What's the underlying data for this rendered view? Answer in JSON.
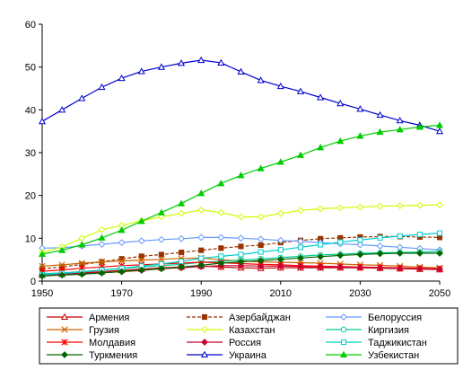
{
  "chart_data": {
    "type": "line",
    "x": [
      1950,
      1955,
      1960,
      1965,
      1970,
      1975,
      1980,
      1985,
      1990,
      1995,
      2000,
      2005,
      2010,
      2015,
      2020,
      2025,
      2030,
      2035,
      2040,
      2045,
      2050
    ],
    "xticks": [
      1950,
      1970,
      1990,
      2010,
      2030,
      2050
    ],
    "yticks": [
      0,
      10,
      20,
      30,
      40,
      50,
      60
    ],
    "xlim": [
      1950,
      2050
    ],
    "ylim": [
      0,
      60
    ],
    "grid": false,
    "legend_position": "bottom",
    "series": [
      {
        "name": "Армения",
        "color": "#c00000",
        "dash": "",
        "marker": "triangle-open",
        "values": [
          1.4,
          1.6,
          1.9,
          2.2,
          2.5,
          2.8,
          3.1,
          3.3,
          3.5,
          3.3,
          3.1,
          3.0,
          3.1,
          3.1,
          3.1,
          3.1,
          3.1,
          3.0,
          2.9,
          2.8,
          2.7
        ]
      },
      {
        "name": "Азербайджан",
        "color": "#993300",
        "dash": "4,2",
        "marker": "square-filled",
        "values": [
          2.9,
          3.3,
          3.9,
          4.5,
          5.2,
          5.8,
          6.2,
          6.7,
          7.2,
          7.7,
          8.1,
          8.4,
          9.0,
          9.5,
          9.9,
          10.1,
          10.3,
          10.4,
          10.4,
          10.3,
          10.2
        ]
      },
      {
        "name": "Белоруссия",
        "color": "#6699ff",
        "dash": "",
        "marker": "diamond-open",
        "values": [
          7.7,
          7.8,
          8.2,
          8.6,
          9.0,
          9.4,
          9.7,
          9.9,
          10.2,
          10.2,
          10.0,
          9.8,
          9.5,
          9.3,
          9.0,
          8.7,
          8.5,
          8.2,
          7.9,
          7.6,
          7.3
        ]
      },
      {
        "name": "Грузия",
        "color": "#cc6600",
        "dash": "",
        "marker": "x",
        "values": [
          3.5,
          3.8,
          4.2,
          4.5,
          4.7,
          4.9,
          5.1,
          5.3,
          5.4,
          5.0,
          4.7,
          4.5,
          4.4,
          4.3,
          4.2,
          4.0,
          3.8,
          3.7,
          3.5,
          3.3,
          3.1
        ]
      },
      {
        "name": "Казахстан",
        "color": "#ccff00",
        "dash": "",
        "marker": "diamond-open",
        "values": [
          6.7,
          8.0,
          10.0,
          12.0,
          13.0,
          14.1,
          15.0,
          15.8,
          16.6,
          16.0,
          15.0,
          15.0,
          15.8,
          16.5,
          16.9,
          17.1,
          17.3,
          17.5,
          17.6,
          17.7,
          17.8
        ]
      },
      {
        "name": "Киргизия",
        "color": "#00cc99",
        "dash": "",
        "marker": "circle-open",
        "values": [
          1.7,
          1.9,
          2.2,
          2.6,
          2.9,
          3.3,
          3.6,
          3.9,
          4.4,
          4.6,
          4.9,
          5.2,
          5.5,
          5.8,
          6.1,
          6.3,
          6.5,
          6.6,
          6.7,
          6.8,
          6.9
        ]
      },
      {
        "name": "Молдавия",
        "color": "#ff0000",
        "dash": "",
        "marker": "asterisk",
        "values": [
          2.3,
          2.6,
          3.0,
          3.3,
          3.6,
          3.8,
          4.0,
          4.2,
          4.4,
          4.3,
          4.1,
          3.9,
          3.8,
          3.6,
          3.5,
          3.4,
          3.3,
          3.2,
          3.1,
          3.0,
          2.9
        ]
      },
      {
        "name": "Россия",
        "color": "#cc0033",
        "dash": "",
        "marker": "diamond-filled",
        "values": [
          1.4,
          1.6,
          1.8,
          2.0,
          2.2,
          2.5,
          2.9,
          3.1,
          3.4,
          3.6,
          3.6,
          3.5,
          3.5,
          3.4,
          3.3,
          3.3,
          3.2,
          3.1,
          3.0,
          2.9,
          2.8
        ]
      },
      {
        "name": "Таджикистан",
        "color": "#00cccc",
        "dash": "",
        "marker": "square-open",
        "values": [
          1.5,
          1.8,
          2.1,
          2.6,
          3.0,
          3.5,
          4.0,
          4.6,
          5.3,
          5.8,
          6.2,
          6.8,
          7.3,
          7.9,
          8.5,
          9.1,
          9.6,
          10.1,
          10.5,
          10.9,
          11.2
        ]
      },
      {
        "name": "Туркмения",
        "color": "#006600",
        "dash": "",
        "marker": "diamond-filled",
        "values": [
          1.2,
          1.4,
          1.6,
          1.9,
          2.2,
          2.6,
          2.9,
          3.3,
          3.7,
          4.2,
          4.5,
          4.8,
          5.1,
          5.4,
          5.7,
          6.0,
          6.2,
          6.4,
          6.5,
          6.5,
          6.5
        ]
      },
      {
        "name": "Украина",
        "color": "#0000cc",
        "dash": "",
        "marker": "triangle-open",
        "values": [
          37.3,
          40.0,
          42.7,
          45.3,
          47.4,
          49.0,
          50.0,
          50.9,
          51.6,
          51.0,
          48.9,
          46.9,
          45.5,
          44.3,
          42.9,
          41.5,
          40.2,
          38.8,
          37.5,
          36.4,
          35.0
        ]
      },
      {
        "name": "Узбекистан",
        "color": "#00cc00",
        "dash": "",
        "marker": "triangle-filled",
        "values": [
          6.3,
          7.2,
          8.5,
          10.1,
          11.9,
          14.0,
          16.0,
          18.1,
          20.5,
          22.8,
          24.7,
          26.3,
          27.8,
          29.4,
          31.2,
          32.7,
          33.9,
          34.8,
          35.4,
          36.0,
          36.4
        ]
      }
    ]
  }
}
